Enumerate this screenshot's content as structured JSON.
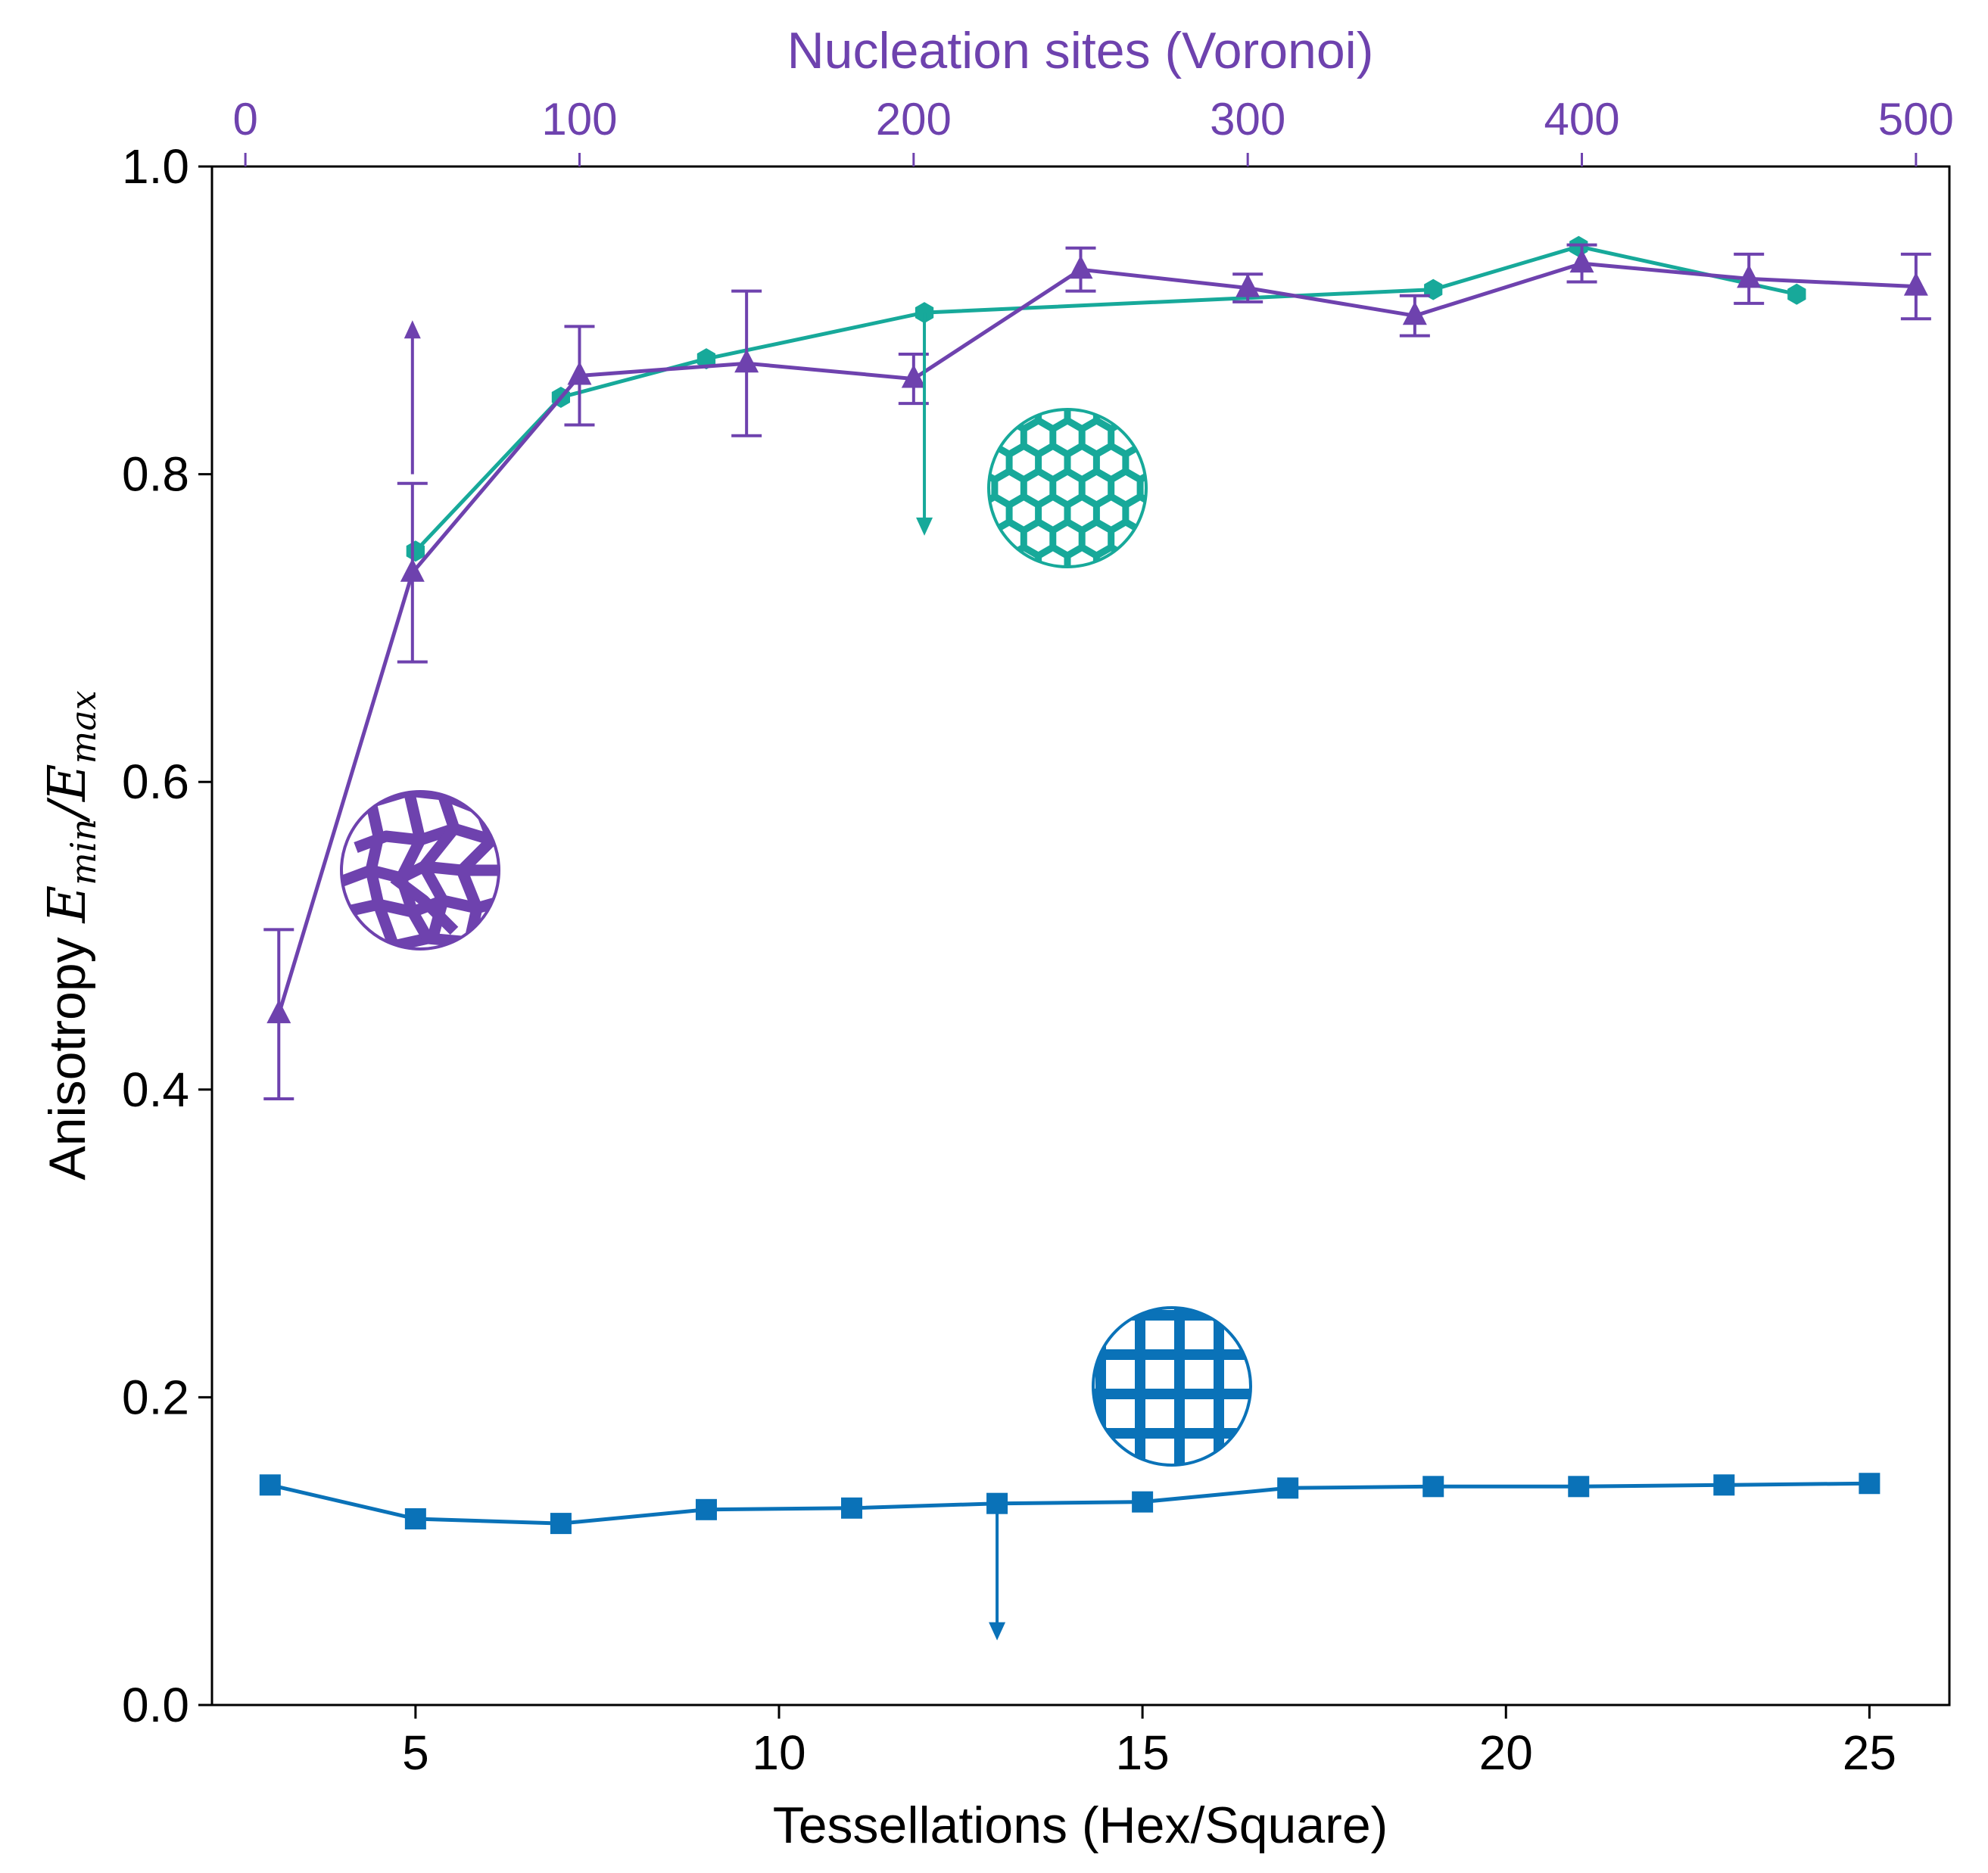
{
  "chart_data": {
    "type": "line",
    "ylabel_prefix": "Anisotropy ",
    "ylabel_math": {
      "E": "E",
      "sub_min": "min",
      "slash": "/",
      "sub_max": "max"
    },
    "xlabel_bottom": "Tessellations (Hex/Square)",
    "xlabel_top": "Nucleation sites (Voronoi)",
    "ylim": [
      0.0,
      1.0
    ],
    "xlim_bottom": [
      2.2,
      26.1
    ],
    "xlim_top": [
      -10,
      510
    ],
    "yticks": [
      0.0,
      0.2,
      0.4,
      0.6,
      0.8,
      1.0
    ],
    "ytick_labels": [
      "0.0",
      "0.2",
      "0.4",
      "0.6",
      "0.8",
      "1.0"
    ],
    "xticks_bottom": [
      5,
      10,
      15,
      20,
      25
    ],
    "xtick_labels_bottom": [
      "5",
      "10",
      "15",
      "20",
      "25"
    ],
    "xticks_top": [
      0,
      100,
      200,
      300,
      400,
      500
    ],
    "xtick_labels_top": [
      "0",
      "100",
      "200",
      "300",
      "400",
      "500"
    ],
    "colors": {
      "hex": "#17A99A",
      "square": "#0A72B8",
      "voronoi": "#6E42AE",
      "axis": "#000000"
    },
    "series": [
      {
        "name": "Hex",
        "axis": "bottom",
        "marker": "hexagon",
        "x": [
          5,
          7,
          9,
          12,
          19,
          21,
          24
        ],
        "y": [
          0.75,
          0.85,
          0.875,
          0.905,
          0.92,
          0.948,
          0.917
        ]
      },
      {
        "name": "Square",
        "axis": "bottom",
        "marker": "square",
        "x": [
          3,
          5,
          7,
          9,
          11,
          13,
          15,
          17,
          19,
          21,
          23,
          25
        ],
        "y": [
          0.143,
          0.121,
          0.118,
          0.127,
          0.128,
          0.131,
          0.132,
          0.141,
          0.142,
          0.142,
          0.143,
          0.144
        ]
      },
      {
        "name": "Voronoi",
        "axis": "top",
        "marker": "triangle",
        "x": [
          10,
          50,
          100,
          150,
          200,
          250,
          300,
          350,
          400,
          450,
          500
        ],
        "y": [
          0.449,
          0.736,
          0.864,
          0.872,
          0.862,
          0.933,
          0.921,
          0.903,
          0.937,
          0.927,
          0.922
        ],
        "err_low": [
          0.055,
          0.058,
          0.032,
          0.047,
          0.016,
          0.014,
          0.009,
          0.013,
          0.012,
          0.016,
          0.021
        ],
        "err_high": [
          0.055,
          0.058,
          0.032,
          0.047,
          0.016,
          0.014,
          0.009,
          0.013,
          0.012,
          0.016,
          0.021
        ]
      }
    ],
    "annotations": [
      {
        "type": "arrow",
        "series": "Voronoi",
        "axis": "top",
        "x": 50,
        "y_from": 0.8,
        "y_to": 0.9
      },
      {
        "type": "arrow",
        "series": "Hex",
        "axis": "bottom",
        "x": 12,
        "y_from": 0.905,
        "y_to": 0.76
      },
      {
        "type": "arrow",
        "series": "Square",
        "axis": "bottom",
        "x": 13,
        "y_from": 0.131,
        "y_to": 0.042
      },
      {
        "type": "inset-icon",
        "series": "Voronoi",
        "pattern": "voronoi-cells"
      },
      {
        "type": "inset-icon",
        "series": "Hex",
        "pattern": "hexagonal-lattice"
      },
      {
        "type": "inset-icon",
        "series": "Square",
        "pattern": "square-grid"
      }
    ]
  }
}
